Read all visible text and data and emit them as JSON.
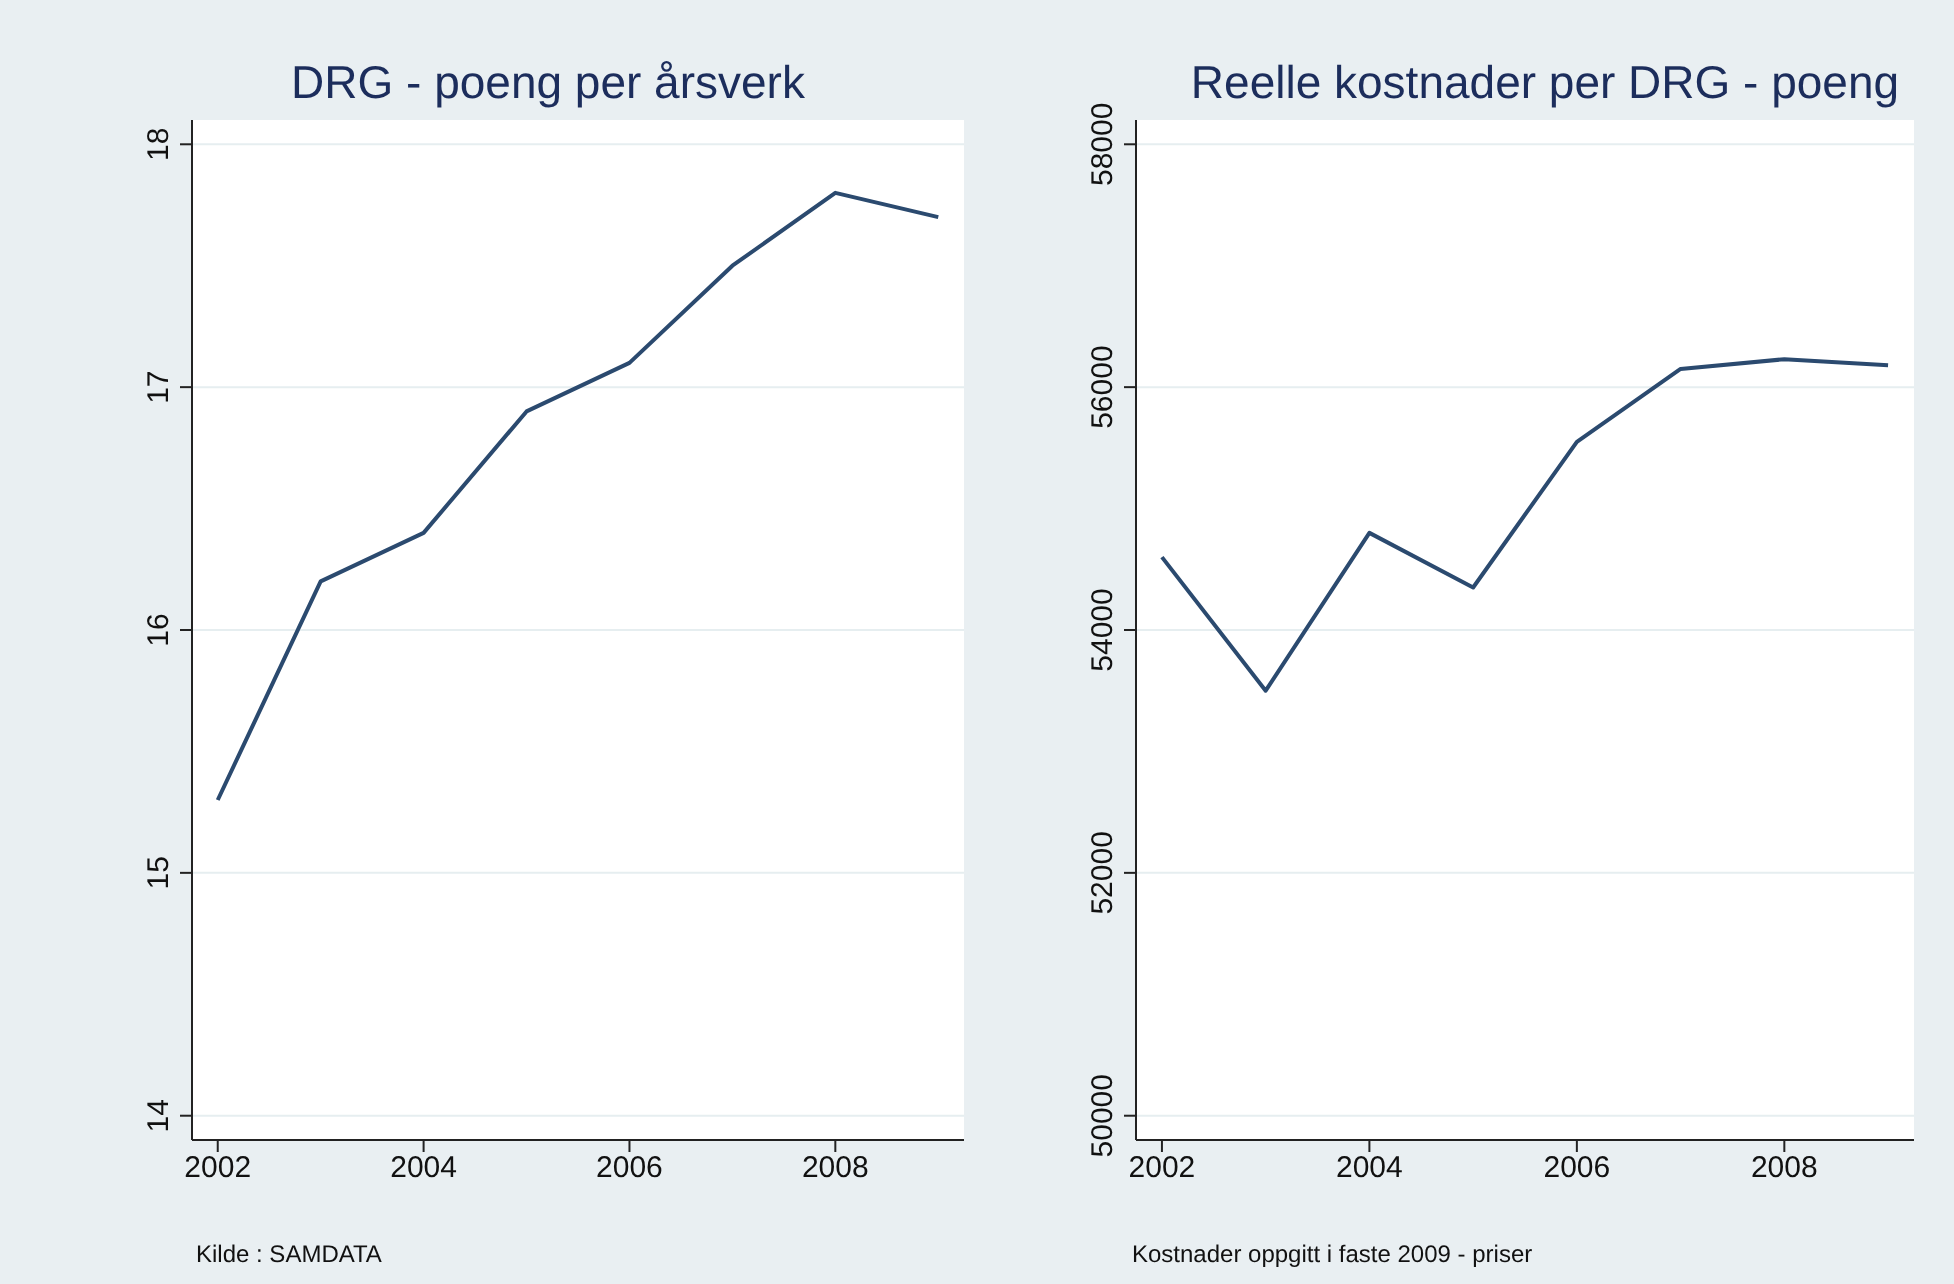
{
  "chart_data": [
    {
      "type": "line",
      "title": "DRG - poeng per årsverk",
      "x": [
        2002,
        2003,
        2004,
        2005,
        2006,
        2007,
        2008,
        2009
      ],
      "series": [
        {
          "color": "#2b4a6f",
          "values": [
            15.3,
            16.2,
            16.4,
            16.9,
            17.1,
            17.5,
            17.8,
            17.7
          ]
        }
      ],
      "xlim": [
        2001.75,
        2009.25
      ],
      "xticks": [
        2002,
        2004,
        2006,
        2008
      ],
      "ylim": [
        13.9,
        18.1
      ],
      "yticks": [
        14,
        15,
        16,
        17,
        18
      ],
      "grid": "y",
      "legend": false,
      "marker": "none",
      "line_style": "solid",
      "annotations": [
        "Kilde : SAMDATA"
      ]
    },
    {
      "type": "line",
      "title": "Reelle kostnader per DRG - poeng",
      "x": [
        2002,
        2003,
        2004,
        2005,
        2006,
        2007,
        2008,
        2009
      ],
      "series": [
        {
          "color": "#2b4a6f",
          "values": [
            54600,
            53500,
            54800,
            54350,
            55550,
            56150,
            56230,
            56180
          ]
        }
      ],
      "xlim": [
        2001.75,
        2009.25
      ],
      "xticks": [
        2002,
        2004,
        2006,
        2008
      ],
      "ylim": [
        49800,
        58200
      ],
      "yticks": [
        50000,
        52000,
        54000,
        56000,
        58000
      ],
      "grid": "y",
      "legend": false,
      "marker": "none",
      "line_style": "solid",
      "annotations": [
        "Kostnader oppgitt i faste 2009 - priser"
      ]
    }
  ]
}
